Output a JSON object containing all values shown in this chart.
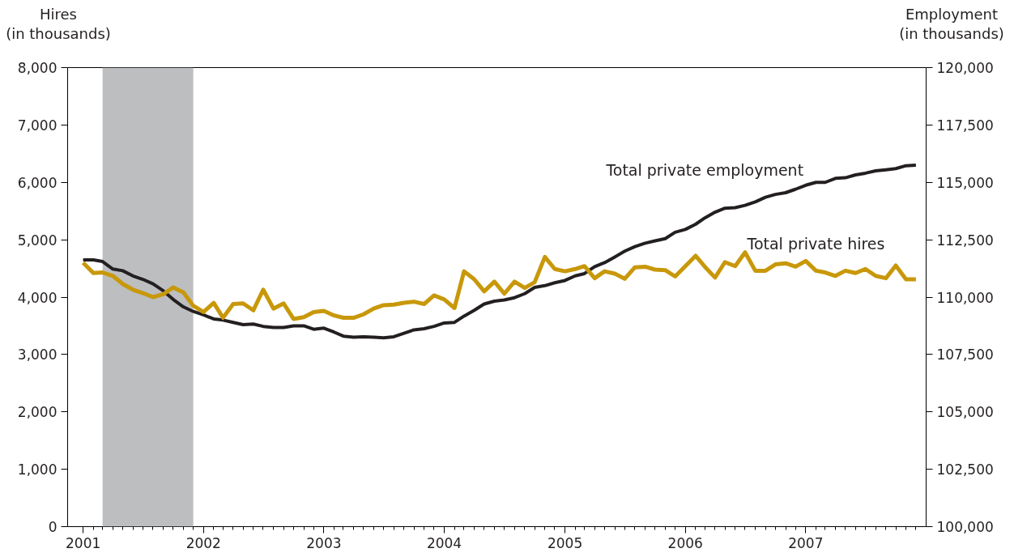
{
  "chart_data": {
    "type": "line",
    "ylabel": "Hires\n(in thousands)",
    "y2label": "Employment\n(in thousands)",
    "x": [
      "2001-01",
      "2001-02",
      "2001-03",
      "2001-04",
      "2001-05",
      "2001-06",
      "2001-07",
      "2001-08",
      "2001-09",
      "2001-10",
      "2001-11",
      "2001-12",
      "2002-01",
      "2002-02",
      "2002-03",
      "2002-04",
      "2002-05",
      "2002-06",
      "2002-07",
      "2002-08",
      "2002-09",
      "2002-10",
      "2002-11",
      "2002-12",
      "2003-01",
      "2003-02",
      "2003-03",
      "2003-04",
      "2003-05",
      "2003-06",
      "2003-07",
      "2003-08",
      "2003-09",
      "2003-10",
      "2003-11",
      "2003-12",
      "2004-01",
      "2004-02",
      "2004-03",
      "2004-04",
      "2004-05",
      "2004-06",
      "2004-07",
      "2004-08",
      "2004-09",
      "2004-10",
      "2004-11",
      "2004-12",
      "2005-01",
      "2005-02",
      "2005-03",
      "2005-04",
      "2005-05",
      "2005-06",
      "2005-07",
      "2005-08",
      "2005-09",
      "2005-10",
      "2005-11",
      "2005-12",
      "2006-01",
      "2006-02",
      "2006-03",
      "2006-04",
      "2006-05",
      "2006-06",
      "2006-07",
      "2006-08",
      "2006-09",
      "2006-10",
      "2006-11",
      "2006-12",
      "2007-01",
      "2007-02",
      "2007-03",
      "2007-04",
      "2007-05",
      "2007-06",
      "2007-07",
      "2007-08",
      "2007-09",
      "2007-10",
      "2007-11",
      "2007-12"
    ],
    "series": [
      {
        "name": "Total private employment",
        "color": "#231f20",
        "axis": "y2",
        "values": [
          111625,
          111625,
          111550,
          111225,
          111150,
          110925,
          110775,
          110575,
          110275,
          109900,
          109575,
          109375,
          109225,
          109050,
          109000,
          108900,
          108800,
          108825,
          108725,
          108675,
          108675,
          108750,
          108750,
          108600,
          108650,
          108475,
          108300,
          108250,
          108275,
          108250,
          108225,
          108275,
          108425,
          108575,
          108625,
          108725,
          108875,
          108900,
          109175,
          109425,
          109700,
          109825,
          109875,
          109975,
          110150,
          110425,
          110500,
          110625,
          110725,
          110925,
          111025,
          111325,
          111500,
          111750,
          112000,
          112200,
          112350,
          112450,
          112550,
          112825,
          112950,
          113175,
          113450,
          113700,
          113875,
          113900,
          114000,
          114150,
          114350,
          114475,
          114550,
          114700,
          114875,
          115000,
          115000,
          115175,
          115200,
          115325,
          115400,
          115500,
          115550,
          115600,
          115725,
          115750
        ]
      },
      {
        "name": "Total private hires",
        "color": "#c8980a",
        "values": [
          4600,
          4420,
          4430,
          4370,
          4230,
          4130,
          4070,
          4000,
          4050,
          4170,
          4080,
          3850,
          3740,
          3900,
          3640,
          3880,
          3890,
          3770,
          4130,
          3800,
          3890,
          3620,
          3650,
          3740,
          3760,
          3680,
          3640,
          3640,
          3700,
          3800,
          3860,
          3870,
          3900,
          3920,
          3880,
          4030,
          3960,
          3810,
          4450,
          4310,
          4100,
          4270,
          4060,
          4270,
          4160,
          4260,
          4700,
          4490,
          4450,
          4490,
          4540,
          4330,
          4450,
          4410,
          4320,
          4520,
          4530,
          4480,
          4470,
          4360,
          4540,
          4720,
          4530,
          4340,
          4610,
          4540,
          4780,
          4460,
          4460,
          4570,
          4590,
          4530,
          4630,
          4460,
          4430,
          4370,
          4460,
          4420,
          4490,
          4370,
          4330,
          4550,
          4310,
          4310
        ]
      }
    ],
    "xlim": [
      "2000-11-15",
      "2008-01-01"
    ],
    "xticks": [
      {
        "value": "2001-01-01",
        "label": "2001"
      },
      {
        "value": "2002-01-01",
        "label": "2002"
      },
      {
        "value": "2003-01-01",
        "label": "2003"
      },
      {
        "value": "2004-01-01",
        "label": "2004"
      },
      {
        "value": "2005-01-01",
        "label": "2005"
      },
      {
        "value": "2006-01-01",
        "label": "2006"
      },
      {
        "value": "2007-01-01",
        "label": "2007"
      }
    ],
    "ylim": [
      0,
      8000
    ],
    "yticks": [
      {
        "value": 0,
        "label": "0"
      },
      {
        "value": 1000,
        "label": "1,000"
      },
      {
        "value": 2000,
        "label": "2,000"
      },
      {
        "value": 3000,
        "label": "3,000"
      },
      {
        "value": 4000,
        "label": "4,000"
      },
      {
        "value": 5000,
        "label": "5,000"
      },
      {
        "value": 6000,
        "label": "6,000"
      },
      {
        "value": 7000,
        "label": "7,000"
      },
      {
        "value": 8000,
        "label": "8,000"
      }
    ],
    "y2lim": [
      100000,
      120000
    ],
    "y2ticks": [
      {
        "value": 100000,
        "label": "100,000"
      },
      {
        "value": 102500,
        "label": "102,500"
      },
      {
        "value": 105000,
        "label": "105,000"
      },
      {
        "value": 107500,
        "label": "107,500"
      },
      {
        "value": 110000,
        "label": "110,000"
      },
      {
        "value": 112500,
        "label": "112,500"
      },
      {
        "value": 115000,
        "label": "115,000"
      },
      {
        "value": 117500,
        "label": "117,500"
      },
      {
        "value": 120000,
        "label": "120,000"
      }
    ],
    "bands": [
      {
        "axis": "x",
        "from": "2001-03",
        "to": "2001-12",
        "color": "#bcbec0"
      }
    ],
    "grid": false,
    "line_style": "solid",
    "marker": "none"
  }
}
